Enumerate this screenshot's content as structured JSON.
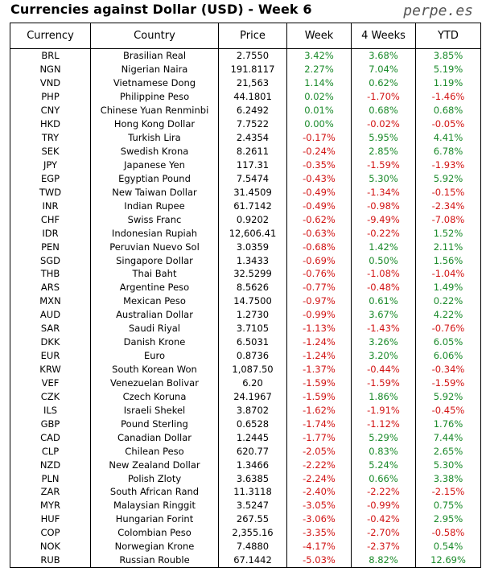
{
  "title": "Currencies against Dollar (USD) - Week 6",
  "brand": "perpe.es",
  "colors": {
    "positive": "#1a8a2a",
    "negative": "#d21414"
  },
  "headers": [
    "Currency",
    "Country",
    "Price",
    "Week",
    "4 Weeks",
    "YTD"
  ],
  "rows": [
    [
      "BRL",
      "Brasilian Real",
      "2.7550",
      "3.42%",
      "3.68%",
      "3.85%"
    ],
    [
      "NGN",
      "Nigerian Naira",
      "191.8117",
      "2.27%",
      "7.04%",
      "5.19%"
    ],
    [
      "VND",
      "Vietnamese Dong",
      "21,563",
      "1.14%",
      "0.62%",
      "1.19%"
    ],
    [
      "PHP",
      "Philippine Peso",
      "44.1801",
      "0.02%",
      "-1.70%",
      "-1.46%"
    ],
    [
      "CNY",
      "Chinese Yuan Renminbi",
      "6.2492",
      "0.01%",
      "0.68%",
      "0.68%"
    ],
    [
      "HKD",
      "Hong Kong Dollar",
      "7.7522",
      "0.00%",
      "-0.02%",
      "-0.05%"
    ],
    [
      "TRY",
      "Turkish Lira",
      "2.4354",
      "-0.17%",
      "5.95%",
      "4.41%"
    ],
    [
      "SEK",
      "Swedish Krona",
      "8.2611",
      "-0.24%",
      "2.85%",
      "6.78%"
    ],
    [
      "JPY",
      "Japanese Yen",
      "117.31",
      "-0.35%",
      "-1.59%",
      "-1.93%"
    ],
    [
      "EGP",
      "Egyptian Pound",
      "7.5474",
      "-0.43%",
      "5.30%",
      "5.92%"
    ],
    [
      "TWD",
      "New Taiwan Dollar",
      "31.4509",
      "-0.49%",
      "-1.34%",
      "-0.15%"
    ],
    [
      "INR",
      "Indian Rupee",
      "61.7142",
      "-0.49%",
      "-0.98%",
      "-2.34%"
    ],
    [
      "CHF",
      "Swiss Franc",
      "0.9202",
      "-0.62%",
      "-9.49%",
      "-7.08%"
    ],
    [
      "IDR",
      "Indonesian Rupiah",
      "12,606.41",
      "-0.63%",
      "-0.22%",
      "1.52%"
    ],
    [
      "PEN",
      "Peruvian Nuevo Sol",
      "3.0359",
      "-0.68%",
      "1.42%",
      "2.11%"
    ],
    [
      "SGD",
      "Singapore Dollar",
      "1.3433",
      "-0.69%",
      "0.50%",
      "1.56%"
    ],
    [
      "THB",
      "Thai Baht",
      "32.5299",
      "-0.76%",
      "-1.08%",
      "-1.04%"
    ],
    [
      "ARS",
      "Argentine Peso",
      "8.5626",
      "-0.77%",
      "-0.48%",
      "1.49%"
    ],
    [
      "MXN",
      "Mexican Peso",
      "14.7500",
      "-0.97%",
      "0.61%",
      "0.22%"
    ],
    [
      "AUD",
      "Australian Dollar",
      "1.2730",
      "-0.99%",
      "3.67%",
      "4.22%"
    ],
    [
      "SAR",
      "Saudi Riyal",
      "3.7105",
      "-1.13%",
      "-1.43%",
      "-0.76%"
    ],
    [
      "DKK",
      "Danish Krone",
      "6.5031",
      "-1.24%",
      "3.26%",
      "6.05%"
    ],
    [
      "EUR",
      "Euro",
      "0.8736",
      "-1.24%",
      "3.20%",
      "6.06%"
    ],
    [
      "KRW",
      "South Korean Won",
      "1,087.50",
      "-1.37%",
      "-0.44%",
      "-0.34%"
    ],
    [
      "VEF",
      "Venezuelan Bolivar",
      "6.20",
      "-1.59%",
      "-1.59%",
      "-1.59%"
    ],
    [
      "CZK",
      "Czech Koruna",
      "24.1967",
      "-1.59%",
      "1.86%",
      "5.92%"
    ],
    [
      "ILS",
      "Israeli Shekel",
      "3.8702",
      "-1.62%",
      "-1.91%",
      "-0.45%"
    ],
    [
      "GBP",
      "Pound Sterling",
      "0.6528",
      "-1.74%",
      "-1.12%",
      "1.76%"
    ],
    [
      "CAD",
      "Canadian Dollar",
      "1.2445",
      "-1.77%",
      "5.29%",
      "7.44%"
    ],
    [
      "CLP",
      "Chilean Peso",
      "620.77",
      "-2.05%",
      "0.83%",
      "2.65%"
    ],
    [
      "NZD",
      "New Zealand Dollar",
      "1.3466",
      "-2.22%",
      "5.24%",
      "5.30%"
    ],
    [
      "PLN",
      "Polish Zloty",
      "3.6385",
      "-2.24%",
      "0.66%",
      "3.38%"
    ],
    [
      "ZAR",
      "South African Rand",
      "11.3118",
      "-2.40%",
      "-2.22%",
      "-2.15%"
    ],
    [
      "MYR",
      "Malaysian Ringgit",
      "3.5247",
      "-3.05%",
      "-0.99%",
      "0.75%"
    ],
    [
      "HUF",
      "Hungarian Forint",
      "267.55",
      "-3.06%",
      "-0.42%",
      "2.95%"
    ],
    [
      "COP",
      "Colombian Peso",
      "2,355.16",
      "-3.35%",
      "-2.70%",
      "-0.58%"
    ],
    [
      "NOK",
      "Norwegian Krone",
      "7.4880",
      "-4.17%",
      "-2.37%",
      "0.54%"
    ],
    [
      "RUB",
      "Russian Rouble",
      "67.1442",
      "-5.03%",
      "8.82%",
      "12.69%"
    ]
  ]
}
